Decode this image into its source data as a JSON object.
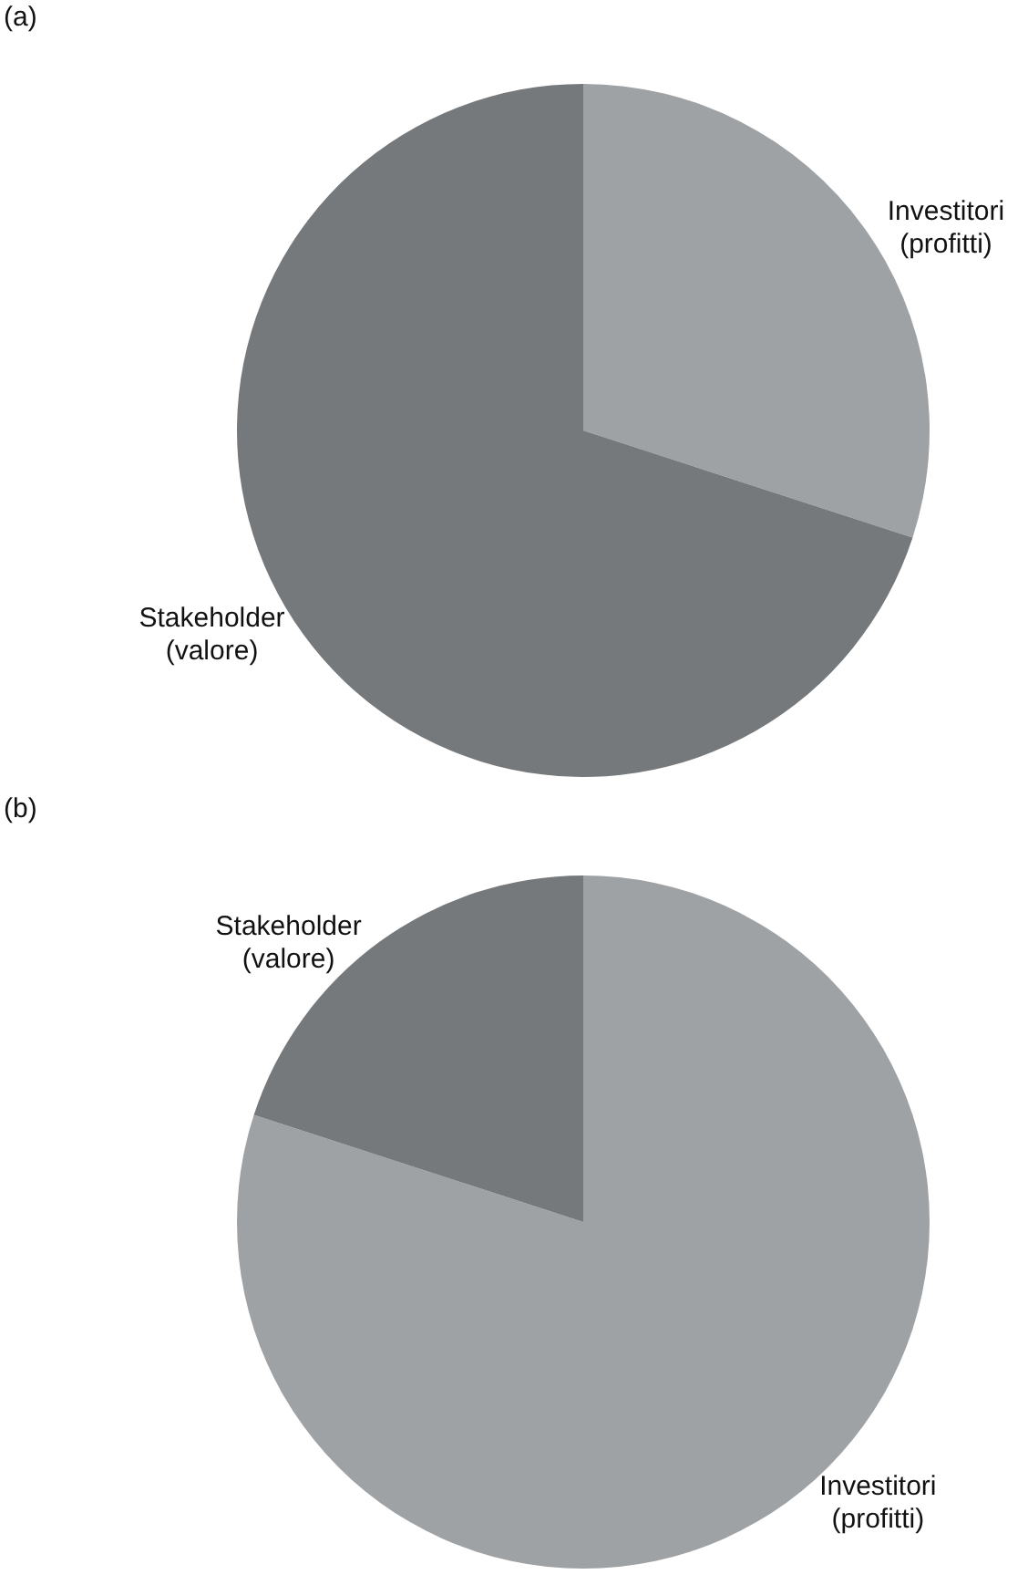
{
  "chart_data": [
    {
      "type": "pie",
      "title": "(a)",
      "categories": [
        "Investitori\n(profitti)",
        "Stakeholder\n(valore)"
      ],
      "values": [
        30,
        70
      ],
      "colors": [
        "#9ea2a5",
        "#75797c"
      ]
    },
    {
      "type": "pie",
      "title": "(b)",
      "categories": [
        "Investitori\n(profitti)",
        "Stakeholder\n(valore)"
      ],
      "values": [
        80,
        20
      ],
      "colors": [
        "#9ea2a5",
        "#75797c"
      ]
    }
  ]
}
